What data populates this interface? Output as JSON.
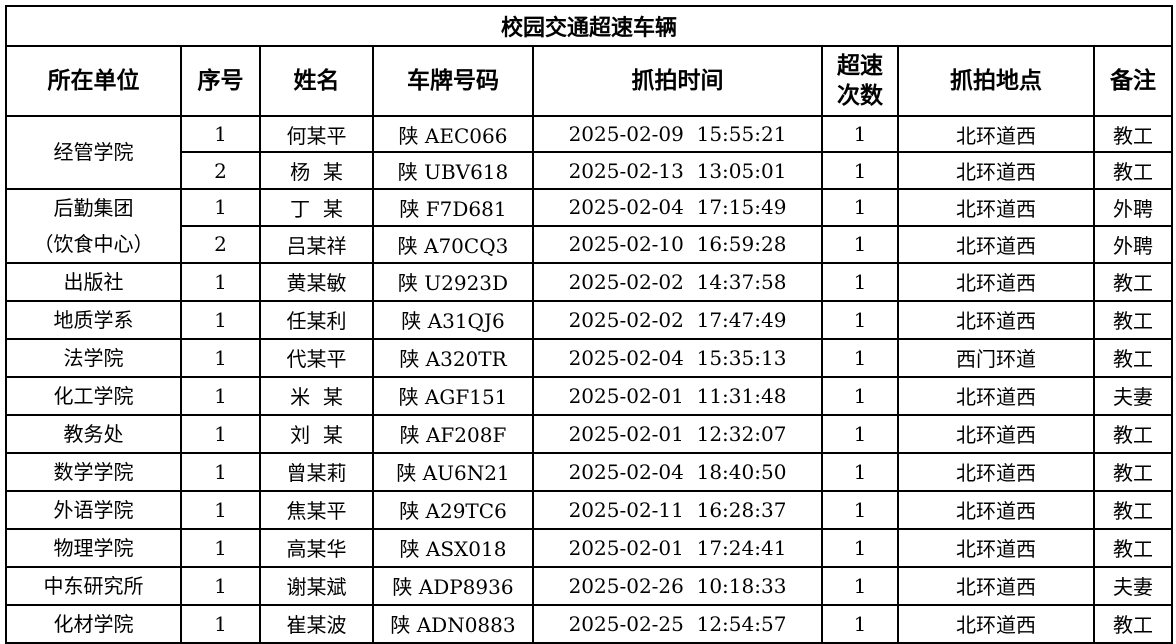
{
  "title": "校园交通超速车辆",
  "headers": [
    "所在单位",
    "序号",
    "姓名",
    "车牌号码",
    "抓拍时间",
    "超速\n次数",
    "抓拍地点",
    "备注"
  ],
  "rows": [
    {
      "dept": "经管学院",
      "span": 2,
      "no": "1",
      "name": "何某平",
      "plate": "陕 AEC066",
      "time": "2025-02-09  15:55:21",
      "count": "1",
      "place": "北环道西",
      "note": "教工"
    },
    {
      "no": "2",
      "name": "杨  某",
      "plate": "陕 UBV618",
      "time": "2025-02-13  13:05:01",
      "count": "1",
      "place": "北环道西",
      "note": "教工"
    },
    {
      "dept": "后勤集团\n（饮食中心）",
      "span": 2,
      "no": "1",
      "name": "丁  某",
      "plate": "陕 F7D681",
      "time": "2025-02-04  17:15:49",
      "count": "1",
      "place": "北环道西",
      "note": "外聘"
    },
    {
      "no": "2",
      "name": "吕某祥",
      "plate": "陕 A70CQ3",
      "time": "2025-02-10  16:59:28",
      "count": "1",
      "place": "北环道西",
      "note": "外聘"
    },
    {
      "dept": "出版社",
      "span": 1,
      "no": "1",
      "name": "黄某敏",
      "plate": "陕 U2923D",
      "time": "2025-02-02  14:37:58",
      "count": "1",
      "place": "北环道西",
      "note": "教工"
    },
    {
      "dept": "地质学系",
      "span": 1,
      "no": "1",
      "name": "任某利",
      "plate": "陕 A31QJ6",
      "time": "2025-02-02  17:47:49",
      "count": "1",
      "place": "北环道西",
      "note": "教工"
    },
    {
      "dept": "法学院",
      "span": 1,
      "no": "1",
      "name": "代某平",
      "plate": "陕 A320TR",
      "time": "2025-02-04  15:35:13",
      "count": "1",
      "place": "西门环道",
      "note": "教工"
    },
    {
      "dept": "化工学院",
      "span": 1,
      "no": "1",
      "name": "米  某",
      "plate": "陕 AGF151",
      "time": "2025-02-01  11:31:48",
      "count": "1",
      "place": "北环道西",
      "note": "夫妻"
    },
    {
      "dept": "教务处",
      "span": 1,
      "no": "1",
      "name": "刘  某",
      "plate": "陕 AF208F",
      "time": "2025-02-01  12:32:07",
      "count": "1",
      "place": "北环道西",
      "note": "教工"
    },
    {
      "dept": "数学学院",
      "span": 1,
      "no": "1",
      "name": "曾某莉",
      "plate": "陕 AU6N21",
      "time": "2025-02-04  18:40:50",
      "count": "1",
      "place": "北环道西",
      "note": "教工"
    },
    {
      "dept": "外语学院",
      "span": 1,
      "no": "1",
      "name": "焦某平",
      "plate": "陕 A29TC6",
      "time": "2025-02-11  16:28:37",
      "count": "1",
      "place": "北环道西",
      "note": "教工"
    },
    {
      "dept": "物理学院",
      "span": 1,
      "no": "1",
      "name": "高某华",
      "plate": "陕 ASX018",
      "time": "2025-02-01  17:24:41",
      "count": "1",
      "place": "北环道西",
      "note": "教工"
    },
    {
      "dept": "中东研究所",
      "span": 1,
      "no": "1",
      "name": "谢某斌",
      "plate": "陕 ADP8936",
      "time": "2025-02-26  10:18:33",
      "count": "1",
      "place": "北环道西",
      "note": "夫妻"
    },
    {
      "dept": "化材学院",
      "span": 1,
      "no": "1",
      "name": "崔某波",
      "plate": "陕 ADN0883",
      "time": "2025-02-25  12:54:57",
      "count": "1",
      "place": "北环道西",
      "note": "教工"
    }
  ]
}
